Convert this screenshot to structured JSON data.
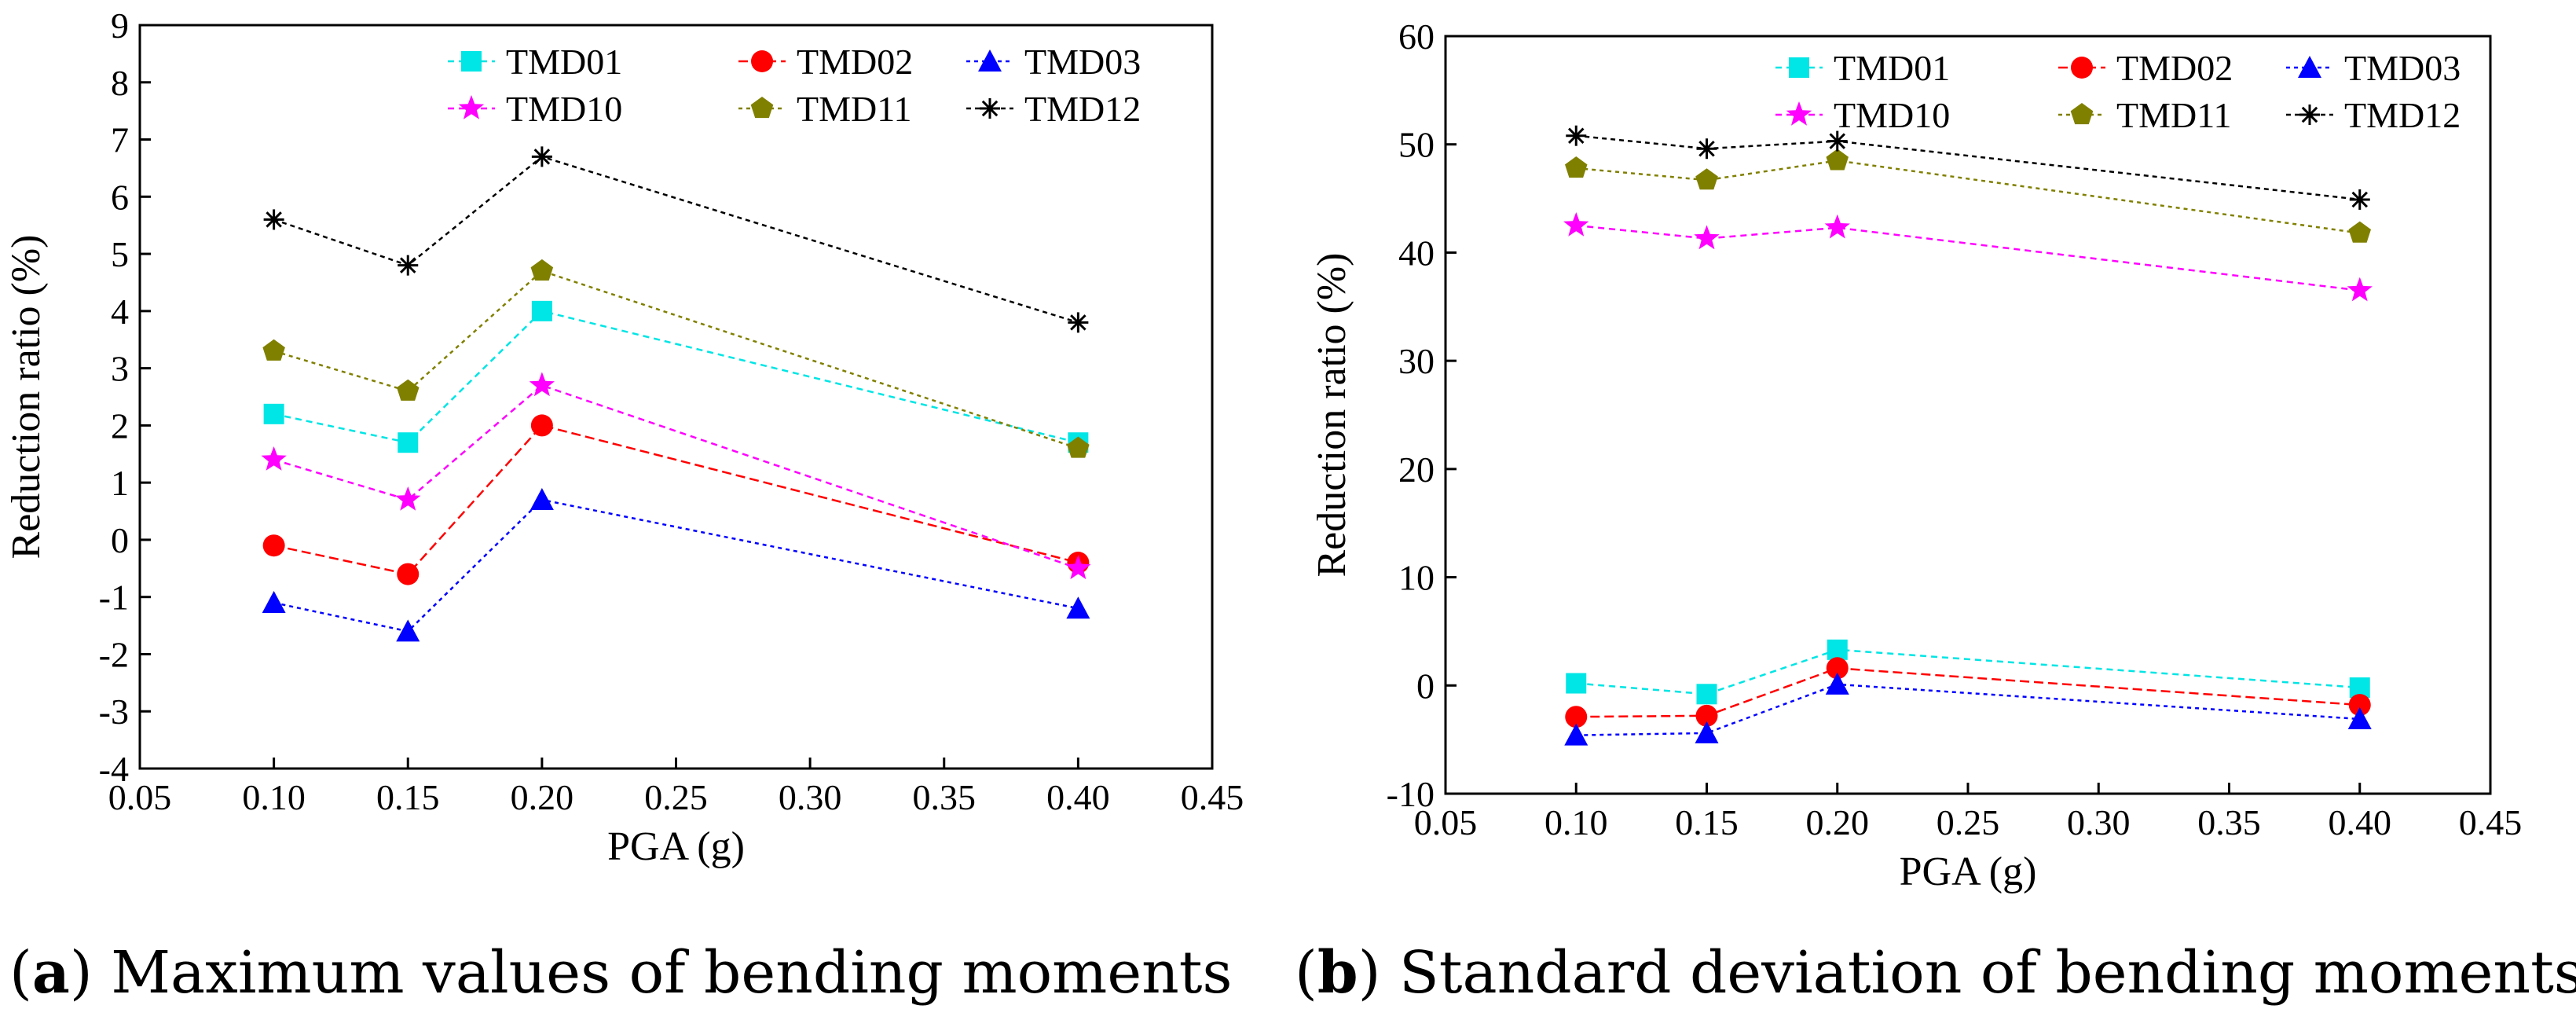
{
  "captions": [
    {
      "letter": "a",
      "text": ") Maximum values of bending moments"
    },
    {
      "letter": "b",
      "text": ") Standard deviation of bending moments"
    }
  ],
  "chart_data": [
    {
      "type": "line",
      "xlabel": "PGA (g)",
      "ylabel": "Reduction ratio (%)",
      "xlim": [
        0.05,
        0.45
      ],
      "ylim": [
        -4,
        9
      ],
      "xticks": [
        "0.05",
        "0.10",
        "0.15",
        "0.20",
        "0.25",
        "0.30",
        "0.35",
        "0.40",
        "0.45"
      ],
      "yticks": [
        "-4",
        "-3",
        "-2",
        "-1",
        "0",
        "1",
        "2",
        "3",
        "4",
        "5",
        "6",
        "7",
        "8",
        "9"
      ],
      "legend_position": "top-right",
      "x": [
        0.1,
        0.15,
        0.2,
        0.4
      ],
      "series": [
        {
          "name": "TMD01",
          "color": "#00e5e5",
          "marker": "square",
          "values": [
            2.2,
            1.7,
            4.0,
            1.7
          ]
        },
        {
          "name": "TMD02",
          "color": "#ff0000",
          "marker": "circle",
          "values": [
            -0.1,
            -0.6,
            2.0,
            -0.4
          ]
        },
        {
          "name": "TMD03",
          "color": "#0000ff",
          "marker": "triangle",
          "values": [
            -1.1,
            -1.6,
            0.7,
            -1.2
          ]
        },
        {
          "name": "TMD10",
          "color": "#ff00ff",
          "marker": "star",
          "values": [
            1.4,
            0.7,
            2.7,
            -0.5
          ]
        },
        {
          "name": "TMD11",
          "color": "#808000",
          "marker": "pentagon",
          "values": [
            3.3,
            2.6,
            4.7,
            1.6
          ]
        },
        {
          "name": "TMD12",
          "color": "#000000",
          "marker": "asterisk",
          "values": [
            5.6,
            4.8,
            6.7,
            3.8
          ]
        }
      ]
    },
    {
      "type": "line",
      "xlabel": "PGA (g)",
      "ylabel": "Reduction ratio (%)",
      "xlim": [
        0.05,
        0.45
      ],
      "ylim": [
        -10,
        60
      ],
      "xticks": [
        "0.05",
        "0.10",
        "0.15",
        "0.20",
        "0.25",
        "0.30",
        "0.35",
        "0.40",
        "0.45"
      ],
      "yticks": [
        "-10",
        "0",
        "10",
        "20",
        "30",
        "40",
        "50",
        "60"
      ],
      "legend_position": "top-right",
      "x": [
        0.1,
        0.15,
        0.2,
        0.4
      ],
      "series": [
        {
          "name": "TMD01",
          "color": "#00e5e5",
          "marker": "square",
          "values": [
            0.2,
            -0.8,
            3.3,
            -0.2
          ]
        },
        {
          "name": "TMD02",
          "color": "#ff0000",
          "marker": "circle",
          "values": [
            -2.9,
            -2.8,
            1.6,
            -1.8
          ]
        },
        {
          "name": "TMD03",
          "color": "#0000ff",
          "marker": "triangle",
          "values": [
            -4.6,
            -4.4,
            0.1,
            -3.1
          ]
        },
        {
          "name": "TMD10",
          "color": "#ff00ff",
          "marker": "star",
          "values": [
            42.5,
            41.3,
            42.3,
            36.5
          ]
        },
        {
          "name": "TMD11",
          "color": "#808000",
          "marker": "pentagon",
          "values": [
            47.8,
            46.7,
            48.5,
            41.8
          ]
        },
        {
          "name": "TMD12",
          "color": "#000000",
          "marker": "asterisk",
          "values": [
            50.8,
            49.6,
            50.3,
            44.9
          ]
        }
      ]
    }
  ]
}
